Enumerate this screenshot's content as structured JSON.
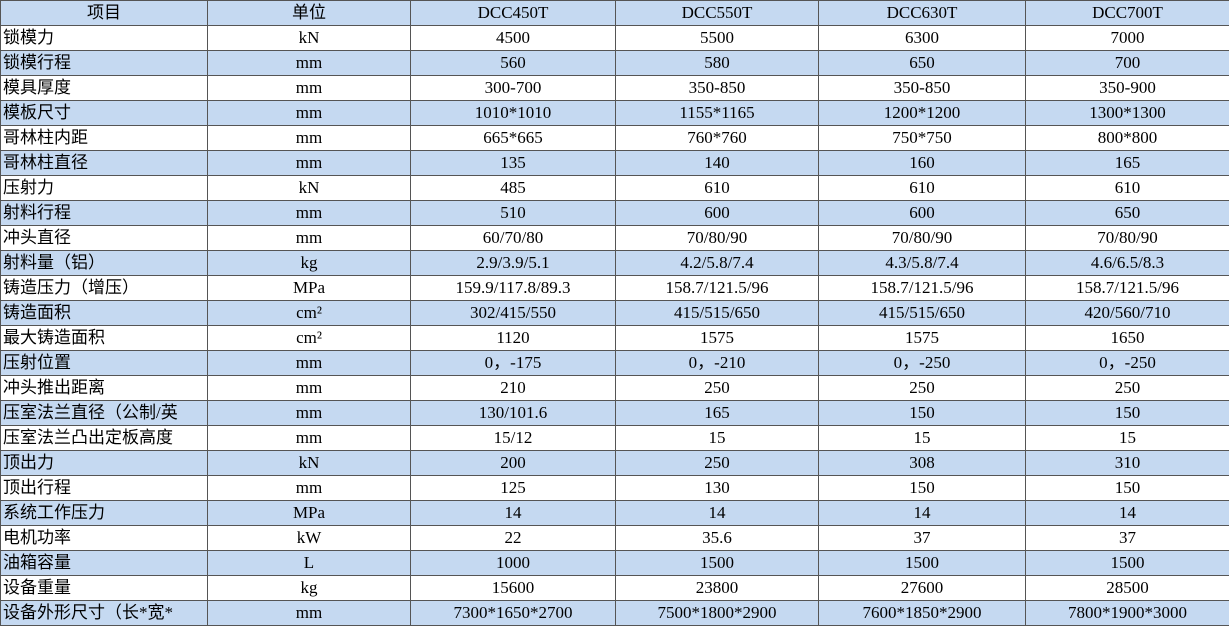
{
  "table": {
    "header": [
      "项目",
      "单位",
      "DCC450T",
      "DCC550T",
      "DCC630T",
      "DCC700T"
    ],
    "rows": [
      [
        "锁模力",
        "kN",
        "4500",
        "5500",
        "6300",
        "7000"
      ],
      [
        "锁模行程",
        "mm",
        "560",
        "580",
        "650",
        "700"
      ],
      [
        "模具厚度",
        "mm",
        "300-700",
        "350-850",
        "350-850",
        "350-900"
      ],
      [
        "模板尺寸",
        "mm",
        "1010*1010",
        "1155*1165",
        "1200*1200",
        "1300*1300"
      ],
      [
        "哥林柱内距",
        "mm",
        "665*665",
        "760*760",
        "750*750",
        "800*800"
      ],
      [
        "哥林柱直径",
        "mm",
        "135",
        "140",
        "160",
        "165"
      ],
      [
        "压射力",
        "kN",
        "485",
        "610",
        "610",
        "610"
      ],
      [
        "射料行程",
        "mm",
        "510",
        "600",
        "600",
        "650"
      ],
      [
        "冲头直径",
        "mm",
        "60/70/80",
        "70/80/90",
        "70/80/90",
        "70/80/90"
      ],
      [
        "射料量（铝）",
        "kg",
        "2.9/3.9/5.1",
        "4.2/5.8/7.4",
        "4.3/5.8/7.4",
        "4.6/6.5/8.3"
      ],
      [
        "铸造压力（增压）",
        "MPa",
        "159.9/117.8/89.3",
        "158.7/121.5/96",
        "158.7/121.5/96",
        "158.7/121.5/96"
      ],
      [
        "铸造面积",
        "cm²",
        "302/415/550",
        "415/515/650",
        "415/515/650",
        "420/560/710"
      ],
      [
        "最大铸造面积",
        "cm²",
        "1120",
        "1575",
        "1575",
        "1650"
      ],
      [
        "压射位置",
        "mm",
        "0，-175",
        "0，-210",
        "0，-250",
        "0，-250"
      ],
      [
        "冲头推出距离",
        "mm",
        "210",
        "250",
        "250",
        "250"
      ],
      [
        "压室法兰直径（公制/英",
        "mm",
        "130/101.6",
        "165",
        "150",
        "150"
      ],
      [
        "压室法兰凸出定板高度",
        "mm",
        "15/12",
        "15",
        "15",
        "15"
      ],
      [
        "顶出力",
        "kN",
        "200",
        "250",
        "308",
        "310"
      ],
      [
        "顶出行程",
        "mm",
        "125",
        "130",
        "150",
        "150"
      ],
      [
        "系统工作压力",
        "MPa",
        "14",
        "14",
        "14",
        "14"
      ],
      [
        "电机功率",
        "kW",
        "22",
        "35.6",
        "37",
        "37"
      ],
      [
        "油箱容量",
        "L",
        "1000",
        "1500",
        "1500",
        "1500"
      ],
      [
        "设备重量",
        "kg",
        "15600",
        "23800",
        "27600",
        "28500"
      ],
      [
        "设备外形尺寸（长*宽*",
        "mm",
        "7300*1650*2700",
        "7500*1800*2900",
        "7600*1850*2900",
        "7800*1900*3000"
      ]
    ]
  }
}
